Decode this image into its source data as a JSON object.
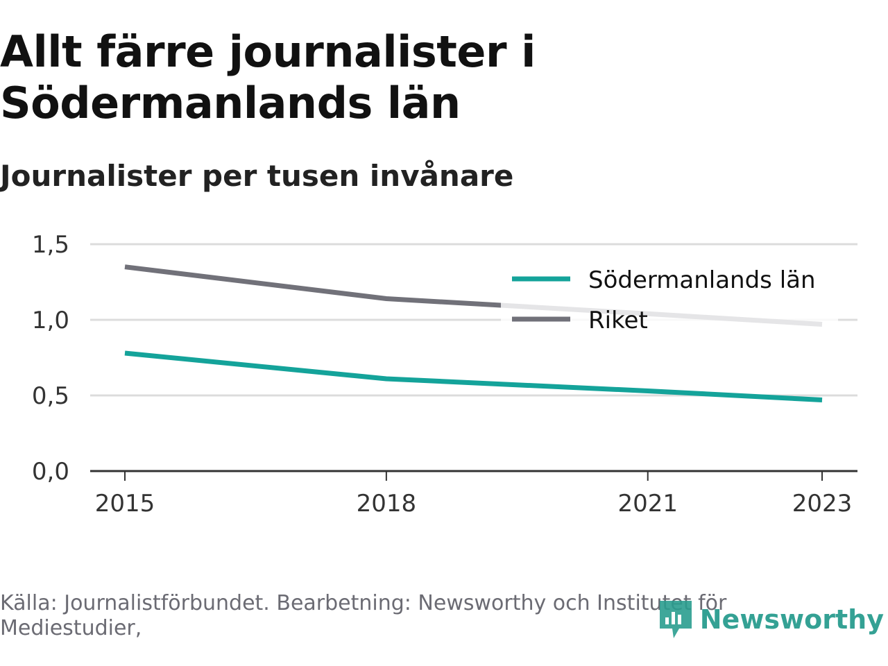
{
  "title": "Allt färre journalister i Södermanlands län",
  "subtitle": "Journalister per tusen invånare",
  "source": "Källa: Journalistförbundet. Bearbetning: Newsworthy och Institutet för Mediestudier,",
  "logo_text": "Newsworthy",
  "colors": {
    "sodermanland": "#14a39a",
    "riket": "#717179",
    "grid": "#dcdcdc",
    "axis": "#333333",
    "brand": "#2a9d8f"
  },
  "chart_data": {
    "type": "line",
    "title": "Allt färre journalister i Södermanlands län",
    "subtitle": "Journalister per tusen invånare",
    "ylim": [
      0,
      1.5
    ],
    "yticks": [
      "0,0",
      "0,5",
      "1,0",
      "1,5"
    ],
    "ytick_values": [
      0,
      0.5,
      1.0,
      1.5
    ],
    "xticks": [
      "2015",
      "2018",
      "2021",
      "2023"
    ],
    "xlim": [
      2015,
      2023
    ],
    "grid": true,
    "legend_position": "top-right",
    "series": [
      {
        "name": "Södermanlands län",
        "color": "#14a39a",
        "x": [
          2015,
          2018,
          2021,
          2023
        ],
        "values": [
          0.78,
          0.61,
          0.53,
          0.47
        ]
      },
      {
        "name": "Riket",
        "color": "#717179",
        "x": [
          2015,
          2018,
          2021,
          2023
        ],
        "values": [
          1.35,
          1.14,
          1.04,
          0.97
        ]
      }
    ]
  }
}
